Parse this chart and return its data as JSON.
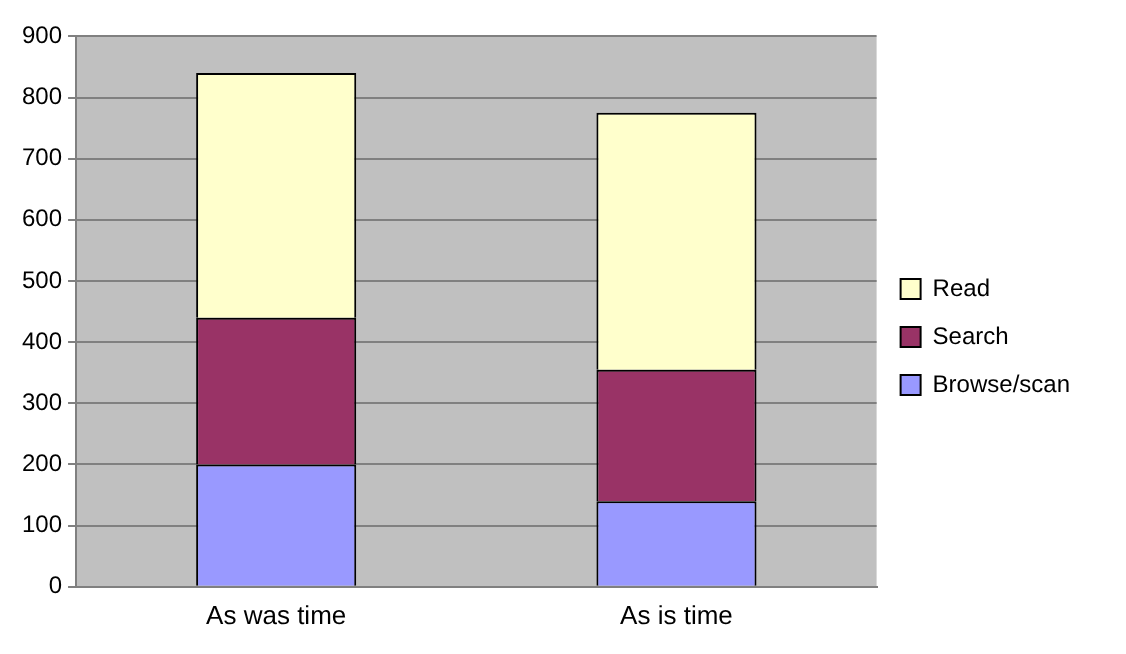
{
  "chart_data": {
    "type": "bar",
    "stacked": true,
    "categories": [
      "As was time",
      "As is time"
    ],
    "series": [
      {
        "name": "Browse/scan",
        "color": "#9999ff",
        "values": [
          200,
          140
        ]
      },
      {
        "name": "Search",
        "color": "#993366",
        "values": [
          240,
          215
        ]
      },
      {
        "name": "Read",
        "color": "#ffffcc",
        "values": [
          400,
          420
        ]
      }
    ],
    "ylim": [
      0,
      900
    ],
    "yticks": [
      0,
      100,
      200,
      300,
      400,
      500,
      600,
      700,
      800,
      900
    ],
    "grid": "y",
    "legend": "right"
  }
}
